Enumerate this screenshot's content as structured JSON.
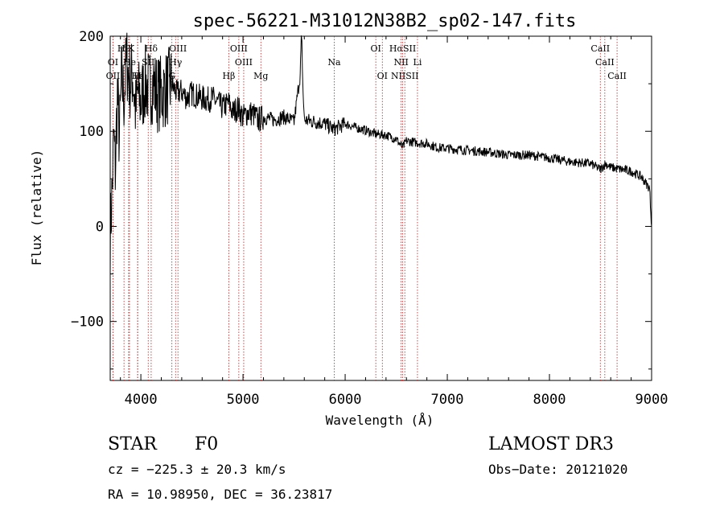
{
  "chart_data": {
    "type": "line",
    "title": "spec-56221-M31012N38B2_sp02-147.fits",
    "xlabel": "Wavelength (Å)",
    "ylabel": "Flux (relative)",
    "xlim": [
      3700,
      9000
    ],
    "ylim": [
      -162,
      200
    ],
    "x_ticks": [
      4000,
      5000,
      6000,
      7000,
      8000,
      9000
    ],
    "x_tick_labels": [
      "4000",
      "5000",
      "6000",
      "7000",
      "8000",
      "9000"
    ],
    "y_ticks": [
      -100,
      0,
      100,
      200
    ],
    "y_tick_labels": [
      "−100",
      "0",
      "100",
      "200"
    ],
    "series": [
      {
        "name": "flux",
        "x": [
          3700,
          3720,
          3735,
          3750,
          3770,
          3790,
          3810,
          3835,
          3860,
          3890,
          3920,
          3950,
          3970,
          4000,
          4040,
          4080,
          4120,
          4160,
          4200,
          4250,
          4300,
          4350,
          4400,
          4450,
          4500,
          4550,
          4600,
          4650,
          4700,
          4750,
          4800,
          4860,
          4900,
          4950,
          5000,
          5050,
          5100,
          5150,
          5200,
          5300,
          5400,
          5500,
          5560,
          5570,
          5577,
          5585,
          5600,
          5700,
          5800,
          5890,
          6000,
          6100,
          6200,
          6300,
          6400,
          6500,
          6563,
          6600,
          6700,
          6800,
          6900,
          7000,
          7200,
          7400,
          7600,
          7800,
          8000,
          8200,
          8400,
          8500,
          8550,
          8600,
          8700,
          8800,
          8900,
          8980,
          9000
        ],
        "y": [
          -10,
          40,
          95,
          60,
          140,
          90,
          155,
          135,
          175,
          150,
          160,
          120,
          140,
          130,
          150,
          145,
          150,
          140,
          140,
          145,
          150,
          140,
          142,
          135,
          140,
          137,
          135,
          133,
          135,
          130,
          125,
          130,
          120,
          125,
          115,
          120,
          118,
          112,
          115,
          112,
          115,
          110,
          160,
          195,
          190,
          150,
          112,
          110,
          108,
          102,
          108,
          104,
          101,
          97,
          96,
          92,
          83,
          90,
          88,
          87,
          83,
          82,
          80,
          78,
          75,
          75,
          72,
          68,
          66,
          60,
          66,
          62,
          60,
          58,
          52,
          40,
          0
        ],
        "noise": 1
      }
    ],
    "lines": [
      {
        "name": "H9",
        "wave": 3835,
        "row": 1
      },
      {
        "name": "δK",
        "wave": 3880,
        "row": 1
      },
      {
        "name": "Hδ",
        "wave": 4101,
        "row": 1
      },
      {
        "name": "OIII",
        "wave": 4363,
        "row": 1
      },
      {
        "name": "OIII",
        "wave": 4959,
        "row": 1
      },
      {
        "name": "OI",
        "wave": 6300,
        "row": 1
      },
      {
        "name": "HαSII",
        "wave": 6563,
        "row": 1
      },
      {
        "name": "CaII",
        "wave": 8498,
        "row": 1
      },
      {
        "name": "OI",
        "wave": 3727,
        "row": 2
      },
      {
        "name": "He",
        "wave": 3889,
        "row": 2
      },
      {
        "name": "SII",
        "wave": 4072,
        "row": 2
      },
      {
        "name": "Hγ",
        "wave": 4340,
        "row": 2
      },
      {
        "name": "OIII",
        "wave": 5007,
        "row": 2
      },
      {
        "name": "Na",
        "wave": 5893,
        "row": 2
      },
      {
        "name": "NII",
        "wave": 6548,
        "row": 2
      },
      {
        "name": "Li",
        "wave": 6708,
        "row": 2
      },
      {
        "name": "CaII",
        "wave": 8542,
        "row": 2
      },
      {
        "name": "OII",
        "wave": 3727,
        "row": 3
      },
      {
        "name": "Hε",
        "wave": 3970,
        "row": 3
      },
      {
        "name": "H",
        "wave": 3968,
        "row": 3
      },
      {
        "name": "G",
        "wave": 4304,
        "row": 3
      },
      {
        "name": "Hβ",
        "wave": 4861,
        "row": 3
      },
      {
        "name": "Mg",
        "wave": 5175,
        "row": 3
      },
      {
        "name": "OI",
        "wave": 6364,
        "row": 3
      },
      {
        "name": "NIISII",
        "wave": 6584,
        "row": 3
      },
      {
        "name": "CaII",
        "wave": 8662,
        "row": 3
      }
    ]
  },
  "footer": {
    "object_type": "STAR",
    "subclass": "F0",
    "survey": "LAMOST DR3",
    "cz": "cz = −225.3 ± 20.3 km/s",
    "obs_date": "Obs−Date: 20121020",
    "coords": "RA =  10.98950, DEC =  36.23817"
  }
}
